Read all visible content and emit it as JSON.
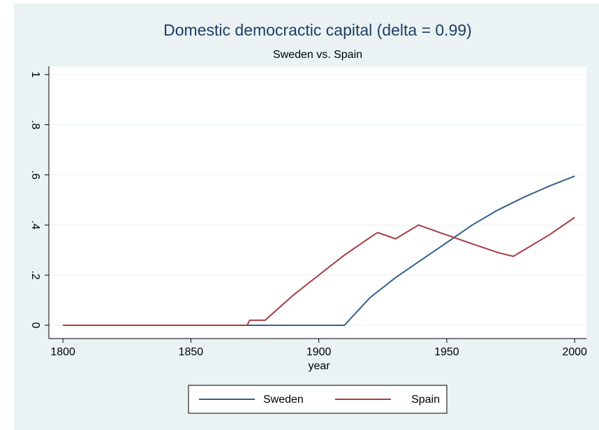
{
  "chart_data": {
    "type": "line",
    "title": "Domestic democractic capital (delta = 0.99)",
    "subtitle": "Sweden  vs. Spain",
    "x_label": "year",
    "xlim": [
      1794.5,
      2004.6
    ],
    "xticks": [
      1800,
      1850,
      1900,
      1950,
      2000
    ],
    "ylim": [
      -0.053,
      1.033
    ],
    "yticks": [
      0,
      {
        "value": 0.2,
        "label": ".2"
      },
      {
        "value": 0.4,
        "label": ".4"
      },
      {
        "value": 0.6,
        "label": ".6"
      },
      {
        "value": 0.8,
        "label": ".8"
      },
      1
    ],
    "grid": true,
    "legend": "bottom",
    "series": [
      {
        "name": "Sweden",
        "color": "#35608a",
        "x": [
          1800,
          1910,
          1920,
          1930,
          1940,
          1950,
          1960,
          1970,
          1980,
          1990,
          2000
        ],
        "values": [
          0,
          0,
          0.11,
          0.19,
          0.26,
          0.33,
          0.4,
          0.46,
          0.51,
          0.555,
          0.595
        ]
      },
      {
        "name": "Spain",
        "color": "#a83a43",
        "x": [
          1800,
          1872,
          1873,
          1879,
          1890,
          1900,
          1910,
          1920,
          1923,
          1930,
          1939,
          1950,
          1960,
          1970,
          1976,
          1990,
          2000
        ],
        "values": [
          0,
          0,
          0.02,
          0.02,
          0.12,
          0.2,
          0.28,
          0.35,
          0.37,
          0.345,
          0.4,
          0.36,
          0.325,
          0.29,
          0.275,
          0.36,
          0.43
        ]
      }
    ]
  }
}
